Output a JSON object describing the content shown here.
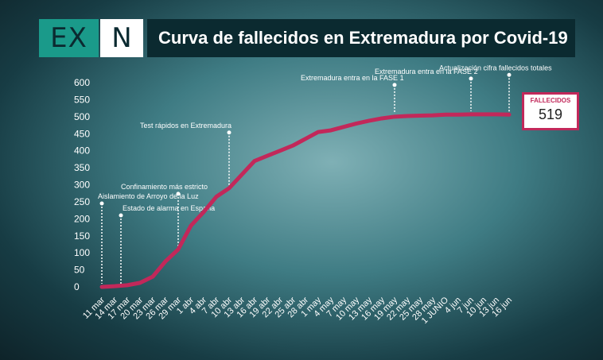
{
  "header": {
    "logo_left": "EX",
    "logo_right": "N",
    "title": "Curva de fallecidos en Extremadura por Covid-19"
  },
  "stat": {
    "label": "FALLECIDOS",
    "value": "519"
  },
  "colors": {
    "line": "#c2285a",
    "text": "#ffffff",
    "title_bg": "#0b2a30",
    "logo_teal": "#1a9a8a"
  },
  "chart_data": {
    "type": "line",
    "title": "Curva de fallecidos en Extremadura por Covid-19",
    "xlabel": "",
    "ylabel": "",
    "ylim": [
      0,
      600
    ],
    "yticks": [
      0,
      50,
      100,
      150,
      200,
      250,
      300,
      350,
      400,
      450,
      500,
      550,
      600
    ],
    "grid": false,
    "categories": [
      "11 mar",
      "14 mar",
      "17 mar",
      "20 mar",
      "23 mar",
      "26 mar",
      "29 mar",
      "1 abr",
      "4 abr",
      "7 abr",
      "10 abr",
      "13 abr",
      "16 abr",
      "19 abr",
      "22 abr",
      "25 abr",
      "28 abr",
      "1 may",
      "4 may",
      "7 may",
      "10 may",
      "13 may",
      "16 may",
      "19 may",
      "22 may",
      "25 may",
      "28 may",
      "1 JUNIO",
      "4 jun",
      "7 jun",
      "10 jun",
      "13 jun",
      "16 jun"
    ],
    "series": [
      {
        "values": [
          0,
          2,
          5,
          12,
          30,
          75,
          110,
          180,
          220,
          265,
          290,
          330,
          370,
          385,
          400,
          415,
          435,
          455,
          460,
          470,
          480,
          488,
          495,
          500,
          502,
          503,
          504,
          506,
          506,
          507,
          507,
          507,
          506
        ]
      }
    ],
    "annotations": [
      {
        "text": "Aislamiento de Arroyo de la Luz",
        "category": "11 mar",
        "value": 0
      },
      {
        "text": "Estado de alarma en España",
        "category": "14 mar",
        "value": 0
      },
      {
        "text": "Confinamiento más estricto",
        "category": "29 mar",
        "value": 110
      },
      {
        "text": "Test rápidos en Extremadura",
        "category": "10 abr",
        "value": 290
      },
      {
        "text": "Extremadura entra en la FASE 1",
        "category": "19 may",
        "value": 500
      },
      {
        "text": "Extremadura entra en la FASE 2",
        "category": "7 jun",
        "value": 507
      },
      {
        "text": "Actualización cifra fallecidos totales",
        "category": "16 jun",
        "value": 506
      }
    ]
  }
}
